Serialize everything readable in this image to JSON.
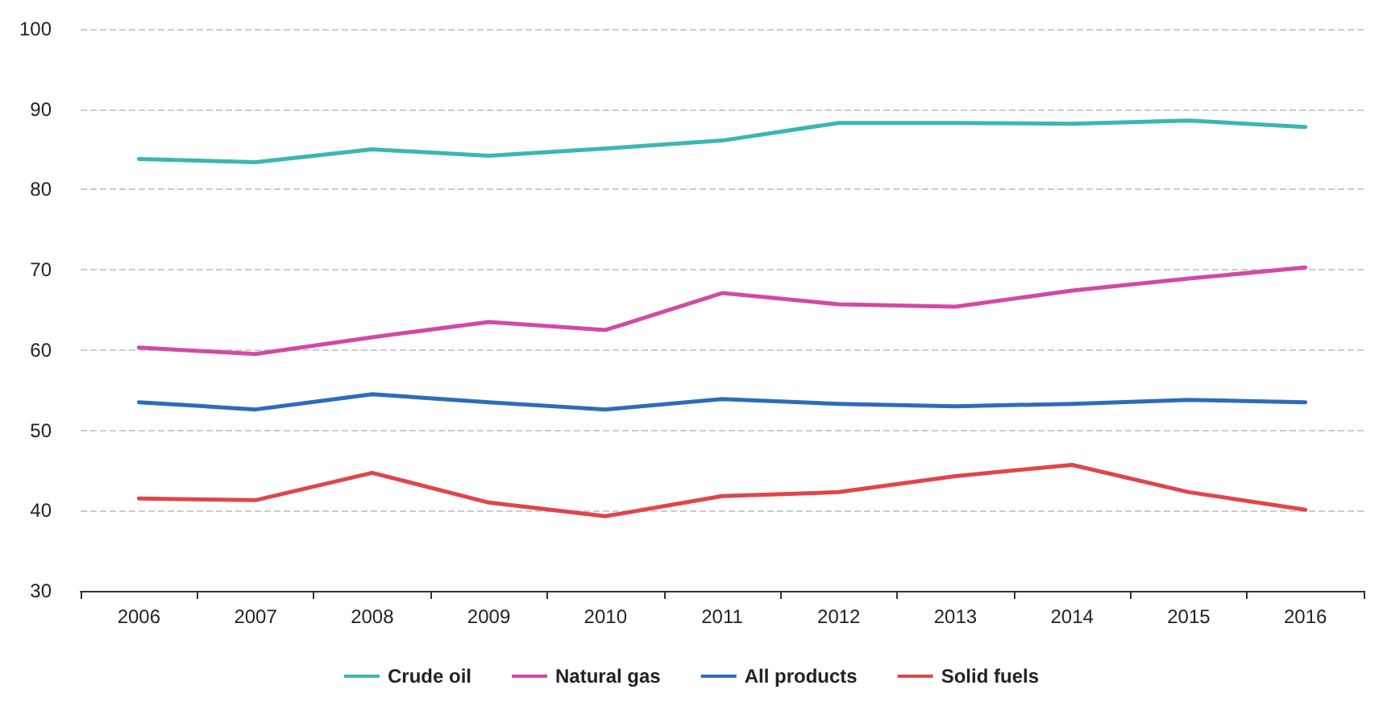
{
  "chart_data": {
    "type": "line",
    "categories": [
      "2006",
      "2007",
      "2008",
      "2009",
      "2010",
      "2011",
      "2012",
      "2013",
      "2014",
      "2015",
      "2016"
    ],
    "series": [
      {
        "name": "Crude oil",
        "color": "#3cb6b0",
        "values": [
          83.8,
          83.4,
          85.0,
          84.2,
          85.1,
          86.1,
          88.3,
          88.3,
          88.2,
          88.6,
          87.8
        ]
      },
      {
        "name": "Natural gas",
        "color": "#d14aa5",
        "values": [
          60.3,
          59.5,
          61.6,
          63.5,
          62.5,
          67.1,
          65.7,
          65.4,
          67.4,
          68.9,
          70.3
        ]
      },
      {
        "name": "All products",
        "color": "#2c6db9",
        "values": [
          53.5,
          52.6,
          54.5,
          53.5,
          52.6,
          53.9,
          53.3,
          53.0,
          53.3,
          53.8,
          53.5
        ]
      },
      {
        "name": "Solid fuels",
        "color": "#e0454b",
        "values": [
          41.5,
          41.3,
          44.7,
          41.0,
          39.3,
          41.8,
          42.3,
          44.3,
          45.7,
          42.3,
          40.1
        ]
      }
    ],
    "ylim": [
      30,
      100
    ],
    "yticks": [
      30,
      40,
      50,
      60,
      70,
      80,
      90,
      100
    ],
    "grid": "y",
    "legend": "bottom",
    "marker": "none",
    "line_style": "solid"
  }
}
